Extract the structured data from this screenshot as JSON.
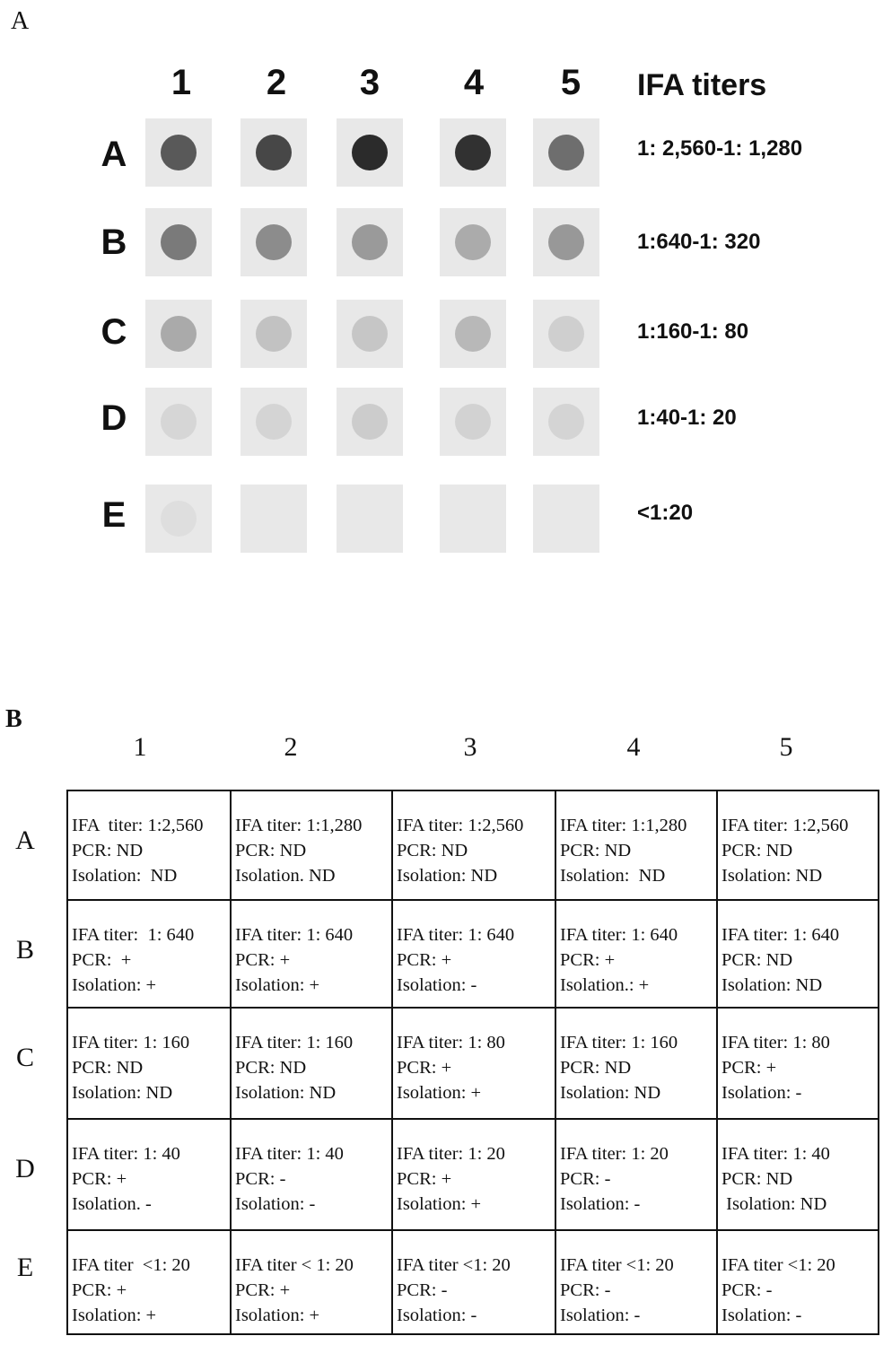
{
  "panel_a": {
    "label": "A",
    "columns": [
      "1",
      "2",
      "3",
      "4",
      "5"
    ],
    "heading": "IFA titers",
    "rows": [
      {
        "label": "A",
        "titer": "1: 2,560-1: 1,280",
        "dots": [
          "#595959",
          "#474747",
          "#2b2b2b",
          "#313131",
          "#6e6e6e"
        ]
      },
      {
        "label": "B",
        "titer": "1:640-1: 320",
        "dots": [
          "#7a7a7a",
          "#8c8c8c",
          "#9a9a9a",
          "#ababab",
          "#989898"
        ]
      },
      {
        "label": "C",
        "titer": "1:160-1: 80",
        "dots": [
          "#aaaaaa",
          "#c2c2c2",
          "#c6c6c6",
          "#b8b8b8",
          "#cfcfcf"
        ]
      },
      {
        "label": "D",
        "titer": "1:40-1: 20",
        "dots": [
          "#d6d6d6",
          "#d4d4d4",
          "#cccccc",
          "#d2d2d2",
          "#d4d4d4"
        ]
      },
      {
        "label": "E",
        "titer": "<1:20",
        "dots": [
          "#dedede",
          null,
          null,
          null,
          null
        ]
      }
    ]
  },
  "panel_b": {
    "label": "B",
    "columns": [
      "1",
      "2",
      "3",
      "4",
      "5"
    ],
    "rows": [
      {
        "label": "A",
        "cells": [
          [
            "IFA  titer: 1:2,560",
            "PCR: ND",
            "Isolation:  ND"
          ],
          [
            "IFA titer: 1:1,280",
            "PCR: ND",
            "Isolation. ND"
          ],
          [
            "IFA titer: 1:2,560",
            "PCR: ND",
            "Isolation: ND"
          ],
          [
            "IFA titer: 1:1,280",
            "PCR: ND",
            "Isolation:  ND"
          ],
          [
            "IFA titer: 1:2,560",
            "PCR: ND",
            "Isolation: ND"
          ]
        ]
      },
      {
        "label": "B",
        "cells": [
          [
            "IFA titer:  1: 640",
            "PCR:  +",
            "Isolation: +"
          ],
          [
            "IFA titer: 1: 640",
            "PCR: +",
            "Isolation: +"
          ],
          [
            "IFA titer: 1: 640",
            "PCR: +",
            "Isolation: -"
          ],
          [
            "IFA titer: 1: 640",
            "PCR: +",
            "Isolation.: +"
          ],
          [
            "IFA titer: 1: 640",
            "PCR: ND",
            "Isolation: ND"
          ]
        ]
      },
      {
        "label": "C",
        "cells": [
          [
            "IFA titer: 1: 160",
            "PCR: ND",
            "Isolation: ND"
          ],
          [
            "IFA titer: 1: 160",
            "PCR: ND",
            "Isolation: ND"
          ],
          [
            "IFA titer: 1: 80",
            "PCR: +",
            "Isolation: +"
          ],
          [
            "IFA titer: 1: 160",
            "PCR: ND",
            "Isolation: ND"
          ],
          [
            "IFA titer: 1: 80",
            "PCR: +",
            "Isolation: -"
          ]
        ]
      },
      {
        "label": "D",
        "cells": [
          [
            "IFA titer: 1: 40",
            "PCR: +",
            "Isolation. -"
          ],
          [
            "IFA titer: 1: 40",
            "PCR: -",
            "Isolation: -"
          ],
          [
            "IFA titer: 1: 20",
            "PCR: +",
            "Isolation: +"
          ],
          [
            "IFA titer: 1: 20",
            "PCR: -",
            "Isolation: -"
          ],
          [
            "IFA titer: 1: 40",
            "PCR: ND",
            " Isolation: ND"
          ]
        ]
      },
      {
        "label": "E",
        "cells": [
          [
            "IFA titer  <1: 20",
            "PCR: +",
            "Isolation: +"
          ],
          [
            "IFA titer < 1: 20",
            "PCR: +",
            "Isolation: +"
          ],
          [
            "IFA titer <1: 20",
            "PCR: -",
            "Isolation: -"
          ],
          [
            "IFA titer <1: 20",
            "PCR: -",
            "Isolation: -"
          ],
          [
            "IFA titer <1: 20",
            "PCR: -",
            "Isolation: -"
          ]
        ]
      }
    ]
  }
}
